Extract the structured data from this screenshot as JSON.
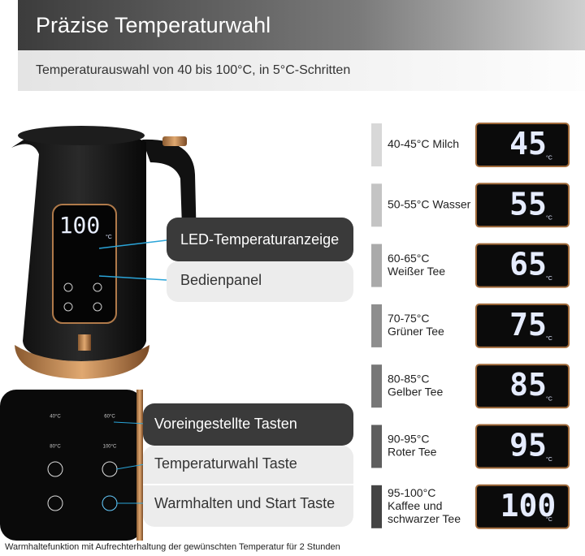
{
  "header": {
    "title": "Präzise Temperaturwahl",
    "subtitle": "Temperaturauswahl von 40 bis 100°C, in 5°C-Schritten"
  },
  "kettle": {
    "display": "100",
    "unit": "°C"
  },
  "callouts_top": [
    "LED-Temperaturanzeige",
    "Bedienpanel"
  ],
  "panel": {
    "icon_labels": [
      "40°C",
      "60°C",
      "80°C",
      "100°C"
    ]
  },
  "callouts_bottom": [
    "Voreingestellte Tasten",
    "Temperaturwahl Taste",
    "Warmhalten und Start Taste"
  ],
  "display_unit": "°C",
  "presets": [
    {
      "label": [
        "40-45°C Milch"
      ],
      "display": "45"
    },
    {
      "label": [
        "50-55°C Wasser"
      ],
      "display": "55"
    },
    {
      "label": [
        "60-65°C",
        "Weißer Tee"
      ],
      "display": "65"
    },
    {
      "label": [
        "70-75°C",
        "Grüner Tee"
      ],
      "display": "75"
    },
    {
      "label": [
        "80-85°C",
        "Gelber Tee"
      ],
      "display": "85"
    },
    {
      "label": [
        "90-95°C",
        "Roter Tee"
      ],
      "display": "95"
    },
    {
      "label": [
        "95-100°C",
        "Kaffee und",
        "schwarzer Tee"
      ],
      "display": "100"
    }
  ],
  "footer": "Warmhaltefunktion mit Aufrechterhaltung der gewünschten Temperatur für 2 Stunden"
}
